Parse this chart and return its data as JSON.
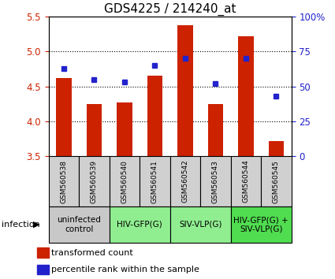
{
  "title": "GDS4225 / 214240_at",
  "samples": [
    "GSM560538",
    "GSM560539",
    "GSM560540",
    "GSM560541",
    "GSM560542",
    "GSM560543",
    "GSM560544",
    "GSM560545"
  ],
  "red_values": [
    4.62,
    4.25,
    4.27,
    4.65,
    5.38,
    4.25,
    5.22,
    3.72
  ],
  "blue_values": [
    63,
    55,
    53,
    65,
    70,
    52,
    70,
    43
  ],
  "ylim_left": [
    3.5,
    5.5
  ],
  "ylim_right": [
    0,
    100
  ],
  "yticks_left": [
    3.5,
    4.0,
    4.5,
    5.0,
    5.5
  ],
  "yticks_right": [
    0,
    25,
    50,
    75,
    100
  ],
  "ytick_labels_right": [
    "0",
    "25",
    "50",
    "75",
    "100%"
  ],
  "groups": [
    {
      "label": "uninfected\ncontrol",
      "start": 0,
      "end": 2,
      "color": "#c8c8c8"
    },
    {
      "label": "HIV-GFP(G)",
      "start": 2,
      "end": 4,
      "color": "#90ee90"
    },
    {
      "label": "SIV-VLP(G)",
      "start": 4,
      "end": 6,
      "color": "#90ee90"
    },
    {
      "label": "HIV-GFP(G) +\nSIV-VLP(G)",
      "start": 6,
      "end": 8,
      "color": "#50dd50"
    }
  ],
  "red_color": "#cc2200",
  "blue_color": "#2222cc",
  "bar_width": 0.5,
  "legend_red_label": "transformed count",
  "legend_blue_label": "percentile rank within the sample",
  "infection_label": "infection",
  "left_tick_color": "#cc2200",
  "right_tick_color": "#2222cc",
  "sample_box_color": "#d0d0d0",
  "title_fontsize": 11
}
